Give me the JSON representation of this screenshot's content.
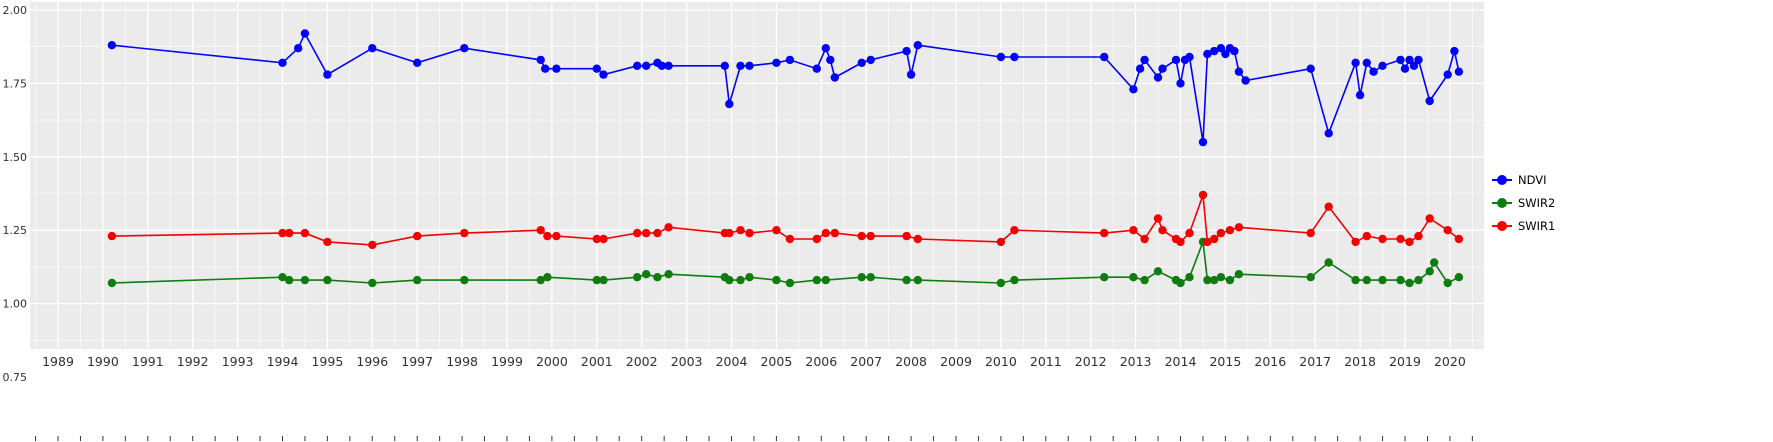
{
  "chart_data": {
    "type": "line",
    "title": "",
    "xlabel": "",
    "ylabel": "",
    "legend_position": "right",
    "grid": true,
    "panel_background": "#EBEBEB",
    "grid_color": "#FFFFFF",
    "axis_label_color": "#303030",
    "x_ticks": [
      1989,
      1990,
      1991,
      1992,
      1993,
      1994,
      1995,
      1996,
      1997,
      1998,
      1999,
      2000,
      2001,
      2002,
      2003,
      2004,
      2005,
      2006,
      2007,
      2008,
      2009,
      2010,
      2011,
      2012,
      2013,
      2014,
      2015,
      2016,
      2017,
      2018,
      2019,
      2020
    ],
    "y_ticks": [
      "2.00",
      "1.75",
      "1.50",
      "1.25",
      "1.00",
      "0.75"
    ],
    "y_minor": [
      1.875,
      1.625,
      1.375,
      1.125,
      0.875
    ],
    "x_range": [
      1988.4,
      2020.8
    ],
    "y_range": [
      0.85,
      2.03
    ],
    "series": [
      {
        "name": "NDVI",
        "color": "#0000FF",
        "points": [
          [
            1990.2,
            1.88
          ],
          [
            1994.0,
            1.82
          ],
          [
            1994.35,
            1.87
          ],
          [
            1994.5,
            1.92
          ],
          [
            1995.0,
            1.78
          ],
          [
            1996.0,
            1.87
          ],
          [
            1997.0,
            1.82
          ],
          [
            1998.05,
            1.87
          ],
          [
            1999.75,
            1.83
          ],
          [
            1999.85,
            1.8
          ],
          [
            2000.1,
            1.8
          ],
          [
            2001.0,
            1.8
          ],
          [
            2001.15,
            1.78
          ],
          [
            2001.9,
            1.81
          ],
          [
            2002.1,
            1.81
          ],
          [
            2002.35,
            1.82
          ],
          [
            2002.45,
            1.81
          ],
          [
            2002.6,
            1.81
          ],
          [
            2003.85,
            1.81
          ],
          [
            2003.95,
            1.68
          ],
          [
            2004.2,
            1.81
          ],
          [
            2004.4,
            1.81
          ],
          [
            2005.0,
            1.82
          ],
          [
            2005.3,
            1.83
          ],
          [
            2005.9,
            1.8
          ],
          [
            2006.1,
            1.87
          ],
          [
            2006.2,
            1.83
          ],
          [
            2006.3,
            1.77
          ],
          [
            2006.9,
            1.82
          ],
          [
            2007.1,
            1.83
          ],
          [
            2007.9,
            1.86
          ],
          [
            2008.0,
            1.78
          ],
          [
            2008.15,
            1.88
          ],
          [
            2010.0,
            1.84
          ],
          [
            2010.3,
            1.84
          ],
          [
            2012.3,
            1.84
          ],
          [
            2012.95,
            1.73
          ],
          [
            2013.1,
            1.8
          ],
          [
            2013.2,
            1.83
          ],
          [
            2013.5,
            1.77
          ],
          [
            2013.6,
            1.8
          ],
          [
            2013.9,
            1.83
          ],
          [
            2014.0,
            1.75
          ],
          [
            2014.1,
            1.83
          ],
          [
            2014.2,
            1.84
          ],
          [
            2014.5,
            1.55
          ],
          [
            2014.6,
            1.85
          ],
          [
            2014.75,
            1.86
          ],
          [
            2014.9,
            1.87
          ],
          [
            2015.0,
            1.85
          ],
          [
            2015.1,
            1.87
          ],
          [
            2015.2,
            1.86
          ],
          [
            2015.3,
            1.79
          ],
          [
            2015.45,
            1.76
          ],
          [
            2016.9,
            1.8
          ],
          [
            2017.3,
            1.58
          ],
          [
            2017.9,
            1.82
          ],
          [
            2018.0,
            1.71
          ],
          [
            2018.15,
            1.82
          ],
          [
            2018.3,
            1.79
          ],
          [
            2018.5,
            1.81
          ],
          [
            2018.9,
            1.83
          ],
          [
            2019.0,
            1.8
          ],
          [
            2019.1,
            1.83
          ],
          [
            2019.2,
            1.81
          ],
          [
            2019.3,
            1.83
          ],
          [
            2019.55,
            1.69
          ],
          [
            2019.95,
            1.78
          ],
          [
            2020.1,
            1.86
          ],
          [
            2020.2,
            1.79
          ]
        ]
      },
      {
        "name": "SWIR2",
        "color": "#0E7C0E",
        "points": [
          [
            1990.2,
            1.07
          ],
          [
            1994.0,
            1.09
          ],
          [
            1994.15,
            1.08
          ],
          [
            1994.5,
            1.08
          ],
          [
            1995.0,
            1.08
          ],
          [
            1996.0,
            1.07
          ],
          [
            1997.0,
            1.08
          ],
          [
            1998.05,
            1.08
          ],
          [
            1999.75,
            1.08
          ],
          [
            1999.9,
            1.09
          ],
          [
            2001.0,
            1.08
          ],
          [
            2001.15,
            1.08
          ],
          [
            2001.9,
            1.09
          ],
          [
            2002.1,
            1.1
          ],
          [
            2002.35,
            1.09
          ],
          [
            2002.6,
            1.1
          ],
          [
            2003.85,
            1.09
          ],
          [
            2003.95,
            1.08
          ],
          [
            2004.2,
            1.08
          ],
          [
            2004.4,
            1.09
          ],
          [
            2005.0,
            1.08
          ],
          [
            2005.3,
            1.07
          ],
          [
            2005.9,
            1.08
          ],
          [
            2006.1,
            1.08
          ],
          [
            2006.9,
            1.09
          ],
          [
            2007.1,
            1.09
          ],
          [
            2007.9,
            1.08
          ],
          [
            2008.15,
            1.08
          ],
          [
            2010.0,
            1.07
          ],
          [
            2010.3,
            1.08
          ],
          [
            2012.3,
            1.09
          ],
          [
            2012.95,
            1.09
          ],
          [
            2013.2,
            1.08
          ],
          [
            2013.5,
            1.11
          ],
          [
            2013.9,
            1.08
          ],
          [
            2014.0,
            1.07
          ],
          [
            2014.2,
            1.09
          ],
          [
            2014.5,
            1.21
          ],
          [
            2014.6,
            1.08
          ],
          [
            2014.75,
            1.08
          ],
          [
            2014.9,
            1.09
          ],
          [
            2015.1,
            1.08
          ],
          [
            2015.3,
            1.1
          ],
          [
            2016.9,
            1.09
          ],
          [
            2017.3,
            1.14
          ],
          [
            2017.9,
            1.08
          ],
          [
            2018.15,
            1.08
          ],
          [
            2018.5,
            1.08
          ],
          [
            2018.9,
            1.08
          ],
          [
            2019.1,
            1.07
          ],
          [
            2019.3,
            1.08
          ],
          [
            2019.55,
            1.11
          ],
          [
            2019.65,
            1.14
          ],
          [
            2019.95,
            1.07
          ],
          [
            2020.2,
            1.09
          ]
        ]
      },
      {
        "name": "SWIR1",
        "color": "#F50000",
        "points": [
          [
            1990.2,
            1.23
          ],
          [
            1994.0,
            1.24
          ],
          [
            1994.15,
            1.24
          ],
          [
            1994.5,
            1.24
          ],
          [
            1995.0,
            1.21
          ],
          [
            1996.0,
            1.2
          ],
          [
            1997.0,
            1.23
          ],
          [
            1998.05,
            1.24
          ],
          [
            1999.75,
            1.25
          ],
          [
            1999.9,
            1.23
          ],
          [
            2000.1,
            1.23
          ],
          [
            2001.0,
            1.22
          ],
          [
            2001.15,
            1.22
          ],
          [
            2001.9,
            1.24
          ],
          [
            2002.1,
            1.24
          ],
          [
            2002.35,
            1.24
          ],
          [
            2002.6,
            1.26
          ],
          [
            2003.85,
            1.24
          ],
          [
            2003.95,
            1.24
          ],
          [
            2004.2,
            1.25
          ],
          [
            2004.4,
            1.24
          ],
          [
            2005.0,
            1.25
          ],
          [
            2005.3,
            1.22
          ],
          [
            2005.9,
            1.22
          ],
          [
            2006.1,
            1.24
          ],
          [
            2006.3,
            1.24
          ],
          [
            2006.9,
            1.23
          ],
          [
            2007.1,
            1.23
          ],
          [
            2007.9,
            1.23
          ],
          [
            2008.15,
            1.22
          ],
          [
            2010.0,
            1.21
          ],
          [
            2010.3,
            1.25
          ],
          [
            2012.3,
            1.24
          ],
          [
            2012.95,
            1.25
          ],
          [
            2013.2,
            1.22
          ],
          [
            2013.5,
            1.29
          ],
          [
            2013.6,
            1.25
          ],
          [
            2013.9,
            1.22
          ],
          [
            2014.0,
            1.21
          ],
          [
            2014.2,
            1.24
          ],
          [
            2014.5,
            1.37
          ],
          [
            2014.6,
            1.21
          ],
          [
            2014.75,
            1.22
          ],
          [
            2014.9,
            1.24
          ],
          [
            2015.1,
            1.25
          ],
          [
            2015.3,
            1.26
          ],
          [
            2016.9,
            1.24
          ],
          [
            2017.3,
            1.33
          ],
          [
            2017.9,
            1.21
          ],
          [
            2018.15,
            1.23
          ],
          [
            2018.5,
            1.22
          ],
          [
            2018.9,
            1.22
          ],
          [
            2019.1,
            1.21
          ],
          [
            2019.3,
            1.23
          ],
          [
            2019.55,
            1.29
          ],
          [
            2019.95,
            1.25
          ],
          [
            2020.2,
            1.22
          ]
        ]
      }
    ]
  }
}
